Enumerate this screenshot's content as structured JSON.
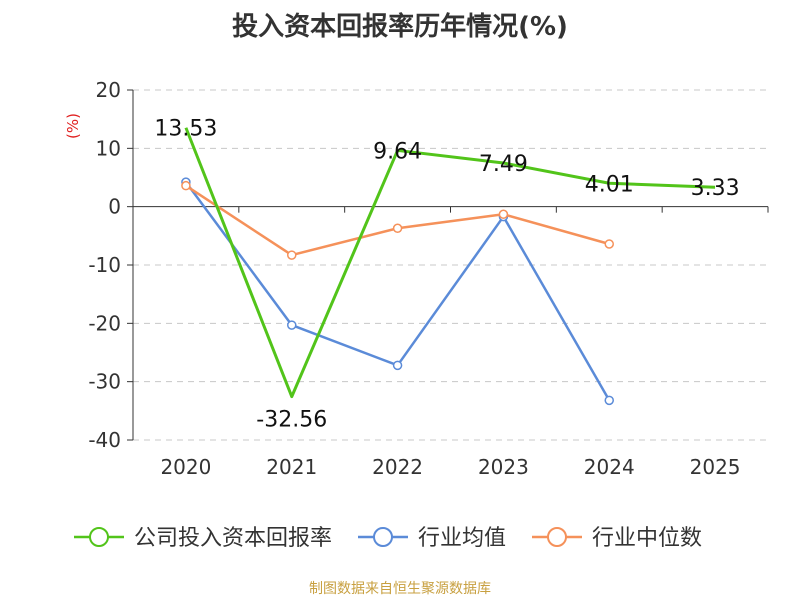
{
  "title": "投入资本回报率历年情况(%)",
  "footer": "制图数据来自恒生聚源数据库",
  "chart_data": {
    "type": "line",
    "title": "投入资本回报率历年情况(%)",
    "ylabel": "(%)",
    "xlabel": "",
    "categories": [
      "2020",
      "2021",
      "2022",
      "2023",
      "2024",
      "2025"
    ],
    "ylim": [
      -40,
      20
    ],
    "yticks": [
      20,
      10,
      0,
      -10,
      -20,
      -30,
      -40
    ],
    "grid": true,
    "legend_position": "bottom",
    "series": [
      {
        "name": "公司投入资本回报率",
        "color": "#52c41a",
        "values": [
          13.53,
          -32.56,
          9.64,
          7.49,
          4.01,
          3.33
        ],
        "labels": [
          "13.53",
          "-32.56",
          "9.64",
          "7.49",
          "4.01",
          "3.33"
        ]
      },
      {
        "name": "行业均值",
        "color": "#5b8bd8",
        "values": [
          4.2,
          -20.3,
          -27.2,
          -1.7,
          -33.2,
          null
        ]
      },
      {
        "name": "行业中位数",
        "color": "#f5915a",
        "values": [
          3.6,
          -8.3,
          -3.7,
          -1.3,
          -6.4,
          null
        ]
      }
    ]
  }
}
